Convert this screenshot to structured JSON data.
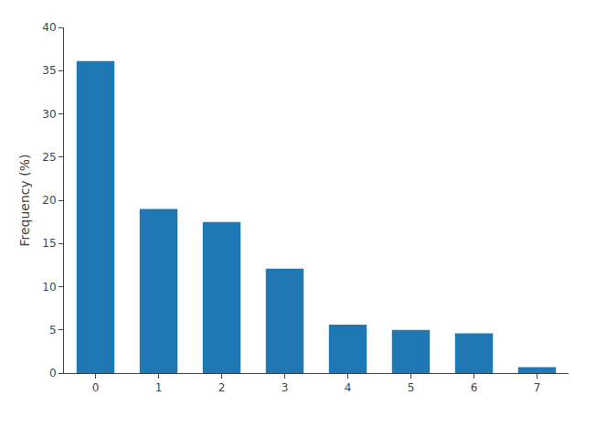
{
  "chart_data": {
    "type": "bar",
    "x": [
      0,
      1,
      2,
      3,
      4,
      5,
      6,
      7
    ],
    "values": [
      36.1,
      19.0,
      17.5,
      12.1,
      5.6,
      5.0,
      4.6,
      0.7
    ],
    "ylabel": "Frequency (%)",
    "xlim": [
      -0.5,
      7.5
    ],
    "xticks": [
      0,
      1,
      2,
      3,
      4,
      5,
      6,
      7
    ],
    "ylim": [
      0,
      40
    ],
    "yticks": [
      0,
      5,
      10,
      15,
      20,
      25,
      30,
      35,
      40
    ],
    "grid": false
  }
}
